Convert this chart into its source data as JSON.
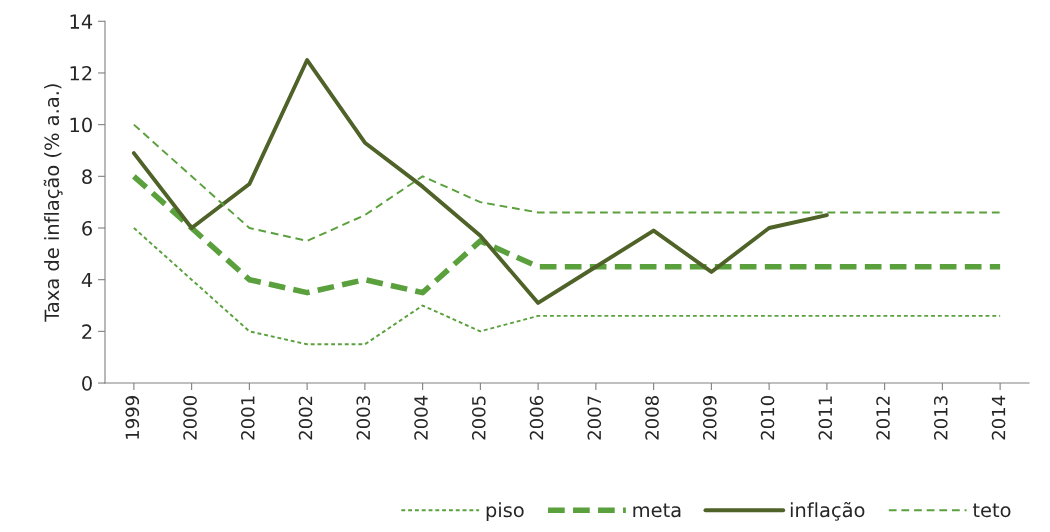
{
  "chart_data": {
    "type": "line",
    "ylabel": "Taxa de inflação (% a.a.)",
    "categories": [
      "1999",
      "2000",
      "2001",
      "2002",
      "2003",
      "2004",
      "2005",
      "2006",
      "2007",
      "2008",
      "2009",
      "2010",
      "2011",
      "2012",
      "2013",
      "2014"
    ],
    "series": [
      {
        "name": "piso",
        "color": "#5aa03c",
        "line_style": "dotted",
        "values": [
          6,
          4,
          2,
          1.5,
          1.5,
          3,
          2,
          2.6,
          2.6,
          2.6,
          2.6,
          2.6,
          2.6,
          2.6,
          2.6,
          2.6
        ]
      },
      {
        "name": "meta",
        "color": "#5aa03c",
        "line_style": "dashed",
        "values": [
          8,
          6,
          4,
          3.5,
          4,
          3.5,
          5.5,
          4.5,
          4.5,
          4.5,
          4.5,
          4.5,
          4.5,
          4.5,
          4.5,
          4.5
        ]
      },
      {
        "name": "inflação",
        "color": "#4f6228",
        "line_style": "solid",
        "values": [
          8.9,
          6,
          7.7,
          12.5,
          9.3,
          7.6,
          5.7,
          3.1,
          4.5,
          5.9,
          4.3,
          6,
          6.5,
          null,
          null,
          null
        ]
      },
      {
        "name": "teto",
        "color": "#5aa03c",
        "line_style": "dashed",
        "values": [
          10,
          8,
          6,
          5.5,
          6.5,
          8,
          7,
          6.6,
          6.6,
          6.6,
          6.6,
          6.6,
          6.6,
          6.6,
          6.6,
          6.6
        ]
      }
    ],
    "ylim": [
      0,
      14
    ],
    "yticks": [
      0,
      2,
      4,
      6,
      8,
      10,
      12,
      14
    ],
    "grid": false,
    "legend": "bottom right",
    "marker": "none"
  }
}
